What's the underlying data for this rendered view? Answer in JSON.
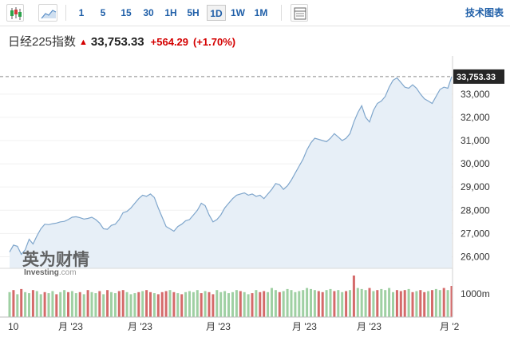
{
  "toolbar": {
    "icons": [
      "candlestick-icon",
      "area-chart-icon",
      "table-icon"
    ],
    "intervals": [
      {
        "label": "1",
        "active": false
      },
      {
        "label": "5",
        "active": false
      },
      {
        "label": "15",
        "active": false
      },
      {
        "label": "30",
        "active": false
      },
      {
        "label": "1H",
        "active": false
      },
      {
        "label": "5H",
        "active": false
      },
      {
        "label": "1D",
        "active": true
      },
      {
        "label": "1W",
        "active": false
      },
      {
        "label": "1M",
        "active": false
      }
    ],
    "tech_chart_label": "技术图表"
  },
  "quote": {
    "name": "日经225指数",
    "direction": "up",
    "price": "33,753.33",
    "change": "+564.29",
    "change_pct": "(+1.70%)"
  },
  "watermark": {
    "brand_cn": "英为财情",
    "brand_en": "Investing",
    "brand_suffix": ".com"
  },
  "colors": {
    "line": "#7fa6cc",
    "area": "#e7eff7",
    "vol_up": "#9fd0a3",
    "vol_down": "#d46a6a",
    "up_text": "#d40000"
  },
  "chart_data": {
    "type": "area",
    "y_ticks": [
      "26,000",
      "27,000",
      "28,000",
      "29,000",
      "30,000",
      "31,000",
      "32,000",
      "33,000"
    ],
    "y_min": 25500,
    "y_max": 34300,
    "current_label": "33,753.33",
    "current_value": 33753.33,
    "x_labels": [
      "10",
      "月 '23",
      "月 '23",
      "月 '23",
      "月 '23",
      "月 '23",
      "月 '2"
    ],
    "volume_label": "1000m",
    "close": [
      26200,
      26500,
      26450,
      26100,
      26300,
      26750,
      26550,
      26900,
      27200,
      27400,
      27380,
      27420,
      27450,
      27500,
      27520,
      27600,
      27700,
      27720,
      27680,
      27620,
      27650,
      27700,
      27600,
      27450,
      27200,
      27180,
      27350,
      27400,
      27600,
      27900,
      27950,
      28100,
      28300,
      28500,
      28650,
      28600,
      28700,
      28550,
      28100,
      27700,
      27300,
      27200,
      27100,
      27300,
      27400,
      27550,
      27600,
      27800,
      28000,
      28300,
      28200,
      27800,
      27500,
      27600,
      27800,
      28100,
      28300,
      28500,
      28650,
      28700,
      28750,
      28650,
      28700,
      28600,
      28650,
      28500,
      28700,
      28900,
      29150,
      29100,
      28900,
      29050,
      29300,
      29600,
      29900,
      30200,
      30600,
      30900,
      31100,
      31050,
      31000,
      30950,
      31100,
      31300,
      31150,
      31000,
      31100,
      31300,
      31800,
      32200,
      32500,
      32000,
      31800,
      32300,
      32600,
      32700,
      32900,
      33300,
      33600,
      33700,
      33500,
      33300,
      33250,
      33400,
      33250,
      33000,
      32800,
      32700,
      32600,
      32900,
      33200,
      33300,
      33250,
      33753
    ],
    "volumes": [
      1.2,
      1.3,
      1.1,
      1.35,
      1.2,
      1.15,
      1.3,
      1.25,
      1.1,
      1.2,
      1.15,
      1.25,
      1.1,
      1.2,
      1.3,
      1.2,
      1.25,
      1.15,
      1.2,
      1.1,
      1.3,
      1.2,
      1.15,
      1.25,
      1.1,
      1.3,
      1.2,
      1.15,
      1.25,
      1.3,
      1.2,
      1.1,
      1.15,
      1.2,
      1.25,
      1.3,
      1.2,
      1.15,
      1.1,
      1.2,
      1.25,
      1.3,
      1.2,
      1.15,
      1.1,
      1.2,
      1.25,
      1.2,
      1.3,
      1.15,
      1.25,
      1.2,
      1.1,
      1.3,
      1.2,
      1.25,
      1.15,
      1.2,
      1.3,
      1.25,
      1.2,
      1.1,
      1.15,
      1.3,
      1.2,
      1.25,
      1.2,
      1.4,
      1.3,
      1.2,
      1.25,
      1.35,
      1.3,
      1.2,
      1.25,
      1.3,
      1.4,
      1.35,
      1.3,
      1.25,
      1.2,
      1.3,
      1.35,
      1.25,
      1.3,
      1.2,
      1.25,
      1.3,
      2.0,
      1.4,
      1.35,
      1.3,
      1.4,
      1.25,
      1.3,
      1.35,
      1.3,
      1.4,
      1.2,
      1.3,
      1.25,
      1.3,
      1.35,
      1.2,
      1.25,
      1.3,
      1.2,
      1.25,
      1.3,
      1.35,
      1.3,
      1.4,
      1.3,
      1.5
    ],
    "volume_down_flags": [
      0,
      1,
      0,
      1,
      0,
      0,
      1,
      0,
      0,
      1,
      0,
      0,
      1,
      0,
      0,
      1,
      0,
      0,
      1,
      0,
      1,
      0,
      0,
      1,
      0,
      1,
      0,
      0,
      1,
      1,
      0,
      0,
      0,
      1,
      0,
      1,
      1,
      0,
      1,
      1,
      1,
      0,
      1,
      0,
      1,
      0,
      0,
      0,
      0,
      1,
      0,
      1,
      1,
      0,
      0,
      0,
      0,
      0,
      0,
      1,
      0,
      0,
      1,
      0,
      1,
      1,
      0,
      0,
      0,
      1,
      0,
      0,
      0,
      0,
      0,
      0,
      0,
      0,
      0,
      1,
      1,
      0,
      0,
      1,
      0,
      0,
      1,
      0,
      1,
      0,
      0,
      0,
      1,
      0,
      1,
      0,
      0,
      0,
      0,
      1,
      1,
      1,
      0,
      1,
      0,
      1,
      1,
      0,
      1,
      0,
      0,
      1,
      0,
      1
    ]
  }
}
